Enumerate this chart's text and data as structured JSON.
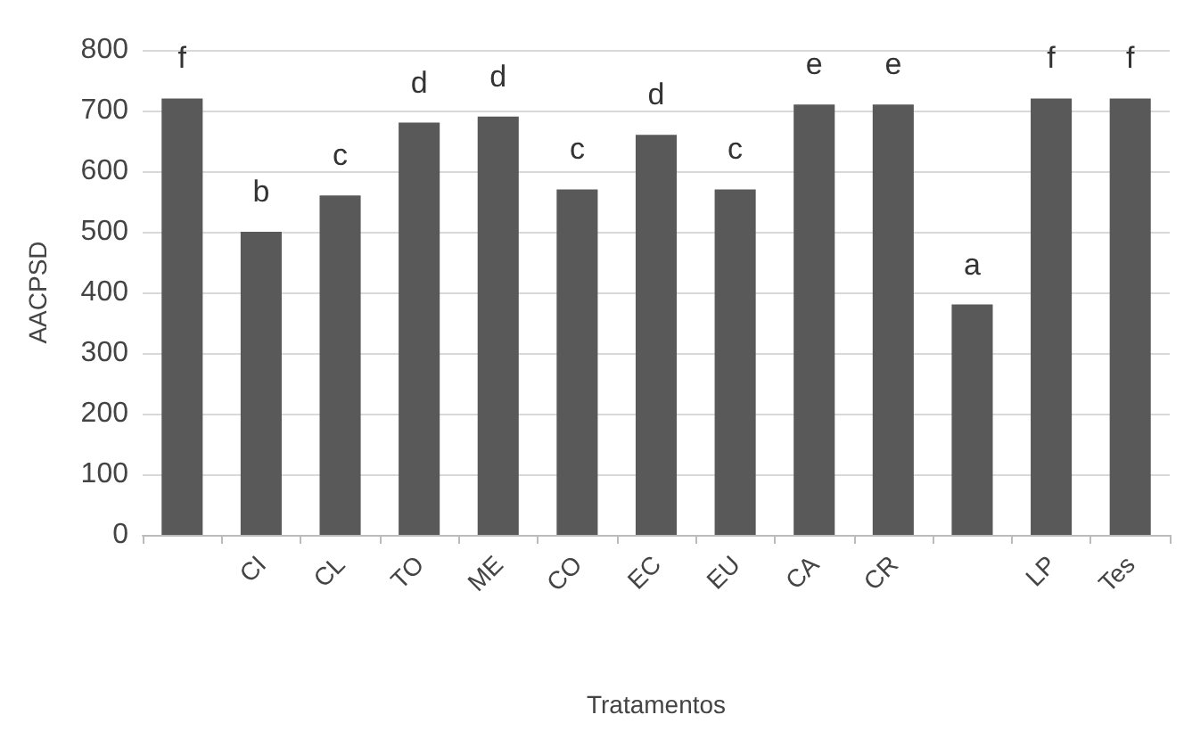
{
  "chart_data": {
    "type": "bar",
    "xlabel": "Tratamentos",
    "ylabel": "AACPSD",
    "categories": [
      null,
      "CI",
      "CL",
      "TO",
      "ME",
      "CO",
      "EC",
      "EU",
      "CA",
      "CR",
      null,
      "LP",
      "Tes"
    ],
    "values": [
      720,
      500,
      560,
      680,
      690,
      570,
      660,
      570,
      710,
      710,
      380,
      720,
      720
    ],
    "value_labels": [
      "f",
      "b",
      "c",
      "d",
      "d",
      "c",
      "d",
      "c",
      "e",
      "e",
      "a",
      "f",
      "f"
    ],
    "color": "#595959",
    "ylim": [
      0,
      800
    ],
    "yticks": [
      0,
      100,
      200,
      300,
      400,
      500,
      600,
      700,
      800
    ],
    "grid": "y"
  }
}
